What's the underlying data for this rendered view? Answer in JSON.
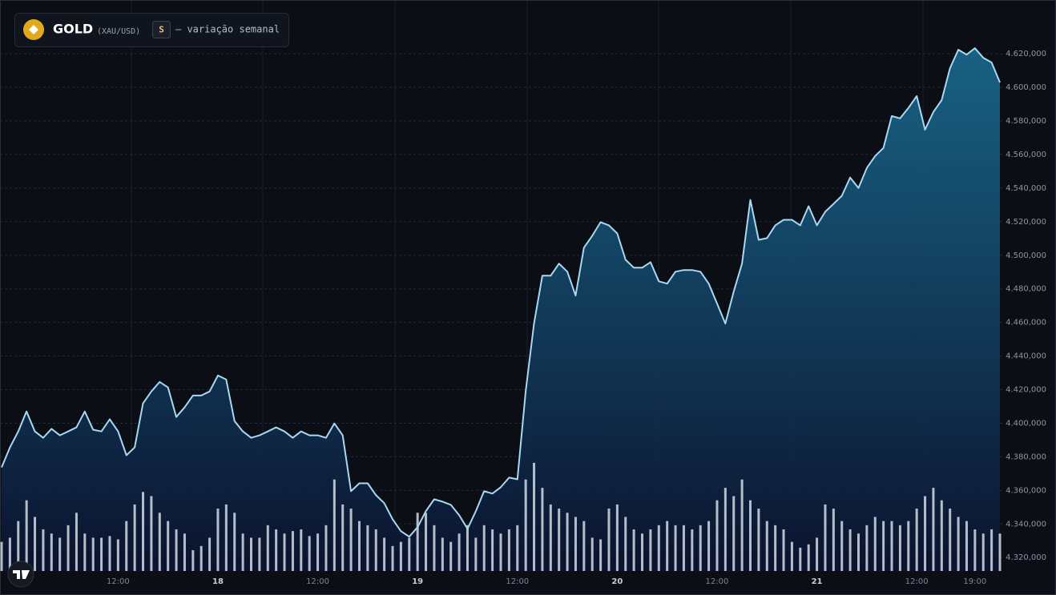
{
  "chart_data": {
    "type": "area",
    "title": "GOLD",
    "symbol": "(XAU/USD)",
    "badge": "S",
    "subtitle": "— variação semanal",
    "categories": [
      null,
      null,
      null,
      null,
      null,
      null,
      null,
      null,
      null,
      null,
      null,
      null,
      null,
      null,
      "12:00",
      null,
      null,
      null,
      null,
      null,
      null,
      null,
      null,
      null,
      null,
      null,
      "18",
      null,
      null,
      null,
      null,
      null,
      null,
      null,
      null,
      null,
      null,
      null,
      "12:00",
      null,
      null,
      null,
      null,
      null,
      null,
      null,
      null,
      null,
      null,
      null,
      "19",
      null,
      null,
      null,
      null,
      null,
      null,
      null,
      null,
      null,
      null,
      null,
      "12:00",
      null,
      null,
      null,
      null,
      null,
      null,
      null,
      null,
      null,
      null,
      null,
      "20",
      null,
      null,
      null,
      null,
      null,
      null,
      null,
      null,
      null,
      null,
      null,
      "12:00",
      null,
      null,
      null,
      null,
      null,
      null,
      null,
      null,
      null,
      null,
      null,
      "21",
      null,
      null,
      null,
      null,
      null,
      null,
      null,
      null,
      null,
      null,
      null,
      "12:00",
      null,
      null,
      null,
      null,
      null,
      null,
      "19:00",
      null,
      null,
      null
    ],
    "values": [
      4373700,
      4385600,
      4395100,
      4407000,
      4395100,
      4391300,
      4396600,
      4392800,
      4395100,
      4397500,
      4407000,
      4396100,
      4395100,
      4402300,
      4395100,
      4380900,
      4385600,
      4411800,
      4418900,
      4424600,
      4421300,
      4403700,
      4409400,
      4416500,
      4416500,
      4418900,
      4428400,
      4426000,
      4401300,
      4395100,
      4391300,
      4392800,
      4395100,
      4397500,
      4395100,
      4391300,
      4395100,
      4392800,
      4392800,
      4391300,
      4399900,
      4392800,
      4359500,
      4364200,
      4364200,
      4357100,
      4352400,
      4342800,
      4335700,
      4332400,
      4338100,
      4347600,
      4354700,
      4353300,
      4351400,
      4345200,
      4337100,
      4347600,
      4359500,
      4358100,
      4361900,
      4367600,
      4366600,
      4418900,
      4459300,
      4487800,
      4487800,
      4495000,
      4490200,
      4476000,
      4504500,
      4511600,
      4519700,
      4517800,
      4513000,
      4497300,
      4492600,
      4492600,
      4495900,
      4484500,
      4483100,
      4490200,
      4491200,
      4491200,
      4490200,
      4483100,
      4471200,
      4459300,
      4478300,
      4495000,
      4533000,
      4509200,
      4510200,
      4517800,
      4521100,
      4521100,
      4517800,
      4529200,
      4517800,
      4525900,
      4530600,
      4535400,
      4546300,
      4540100,
      4552000,
      4559100,
      4563900,
      4582900,
      4581500,
      4587700,
      4594800,
      4574800,
      4585300,
      4592400,
      4611400,
      4622400,
      4619500,
      4623300,
      4617600,
      4614800,
      4602900
    ],
    "line_color": "#a9d8f2",
    "fill_color": "#1a6f96",
    "volume": [
      35,
      40,
      60,
      85,
      65,
      50,
      45,
      40,
      55,
      70,
      45,
      40,
      40,
      42,
      38,
      60,
      80,
      95,
      90,
      70,
      60,
      50,
      45,
      25,
      30,
      40,
      75,
      80,
      70,
      45,
      40,
      40,
      55,
      50,
      45,
      48,
      50,
      42,
      45,
      55,
      110,
      80,
      75,
      60,
      55,
      50,
      40,
      30,
      35,
      40,
      70,
      70,
      55,
      40,
      35,
      45,
      55,
      40,
      55,
      50,
      45,
      50,
      55,
      110,
      130,
      100,
      80,
      75,
      70,
      65,
      60,
      40,
      38,
      75,
      80,
      65,
      50,
      45,
      50,
      55,
      60,
      55,
      55,
      50,
      55,
      60,
      85,
      100,
      90,
      110,
      85,
      75,
      60,
      55,
      50,
      35,
      28,
      32,
      40,
      80,
      75,
      60,
      50,
      45,
      55,
      65,
      60,
      60,
      55,
      60,
      75,
      90,
      100,
      85,
      75,
      65,
      60,
      50,
      45,
      50,
      45
    ],
    "volume_color": "#dfe7f0",
    "ylim": [
      4312000,
      4652000
    ],
    "yticks": [
      {
        "value": 4320000,
        "label": "4.320,000"
      },
      {
        "value": 4340000,
        "label": "4.340,000"
      },
      {
        "value": 4360000,
        "label": "4.360,000"
      },
      {
        "value": 4380000,
        "label": "4.380,000"
      },
      {
        "value": 4400000,
        "label": "4.400,000"
      },
      {
        "value": 4420000,
        "label": "4.420,000"
      },
      {
        "value": 4440000,
        "label": "4.440,000"
      },
      {
        "value": 4460000,
        "label": "4.460,000"
      },
      {
        "value": 4480000,
        "label": "4.480,000"
      },
      {
        "value": 4500000,
        "label": "4.500,000"
      },
      {
        "value": 4520000,
        "label": "4.520,000"
      },
      {
        "value": 4540000,
        "label": "4.540,000"
      },
      {
        "value": 4560000,
        "label": "4.560,000"
      },
      {
        "value": 4580000,
        "label": "4.580,000"
      },
      {
        "value": 4600000,
        "label": "4.600,000"
      },
      {
        "value": 4620000,
        "label": "4.620,000"
      }
    ],
    "grid": true,
    "y_axis_side": "right"
  }
}
